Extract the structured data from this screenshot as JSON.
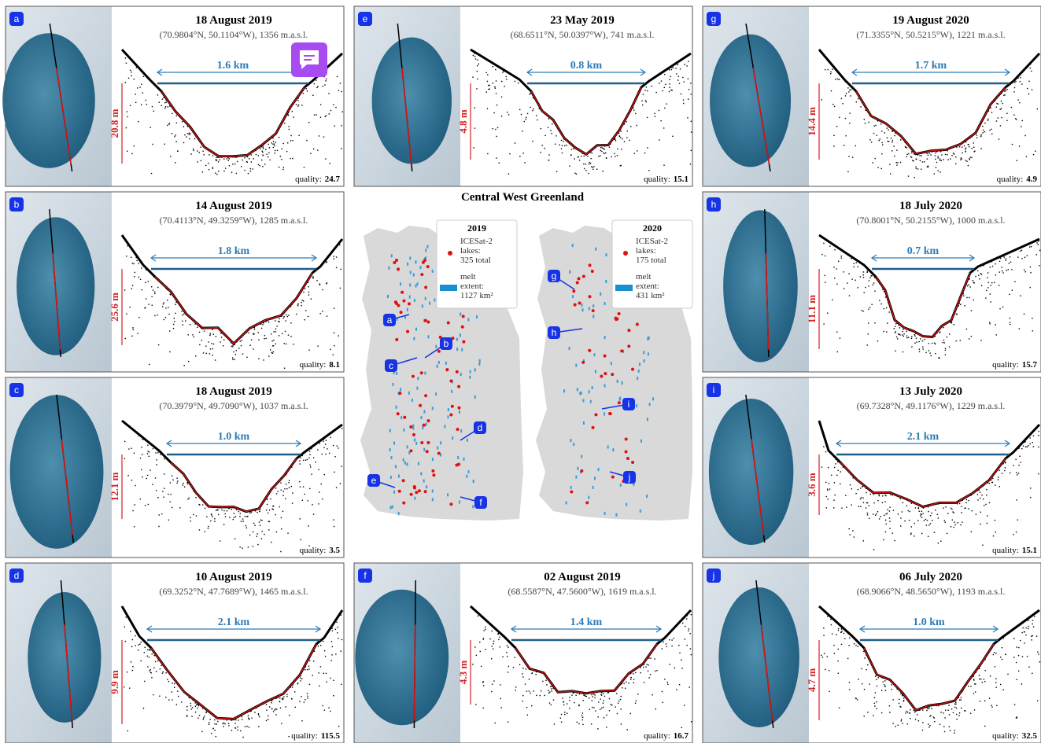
{
  "panels": [
    {
      "letter": "a",
      "date": "18 August 2019",
      "location": "(70.9804°N, 50.1104°W), 1356 m.a.s.l.",
      "width": "1.6 km",
      "depth": "20.8 m",
      "quality_label": "quality:",
      "quality": "24.7"
    },
    {
      "letter": "b",
      "date": "14 August 2019",
      "location": "(70.4113°N, 49.3259°W), 1285 m.a.s.l.",
      "width": "1.8 km",
      "depth": "25.6 m",
      "quality_label": "quality:",
      "quality": "8.1"
    },
    {
      "letter": "c",
      "date": "18 August 2019",
      "location": "(70.3979°N, 49.7090°W), 1037 m.a.s.l.",
      "width": "1.0 km",
      "depth": "12.1 m",
      "quality_label": "quality:",
      "quality": "3.5"
    },
    {
      "letter": "d",
      "date": "10 August 2019",
      "location": "(69.3252°N, 47.7689°W), 1465 m.a.s.l.",
      "width": "2.1 km",
      "depth": "9.9 m",
      "quality_label": "quality:",
      "quality": "115.5"
    },
    {
      "letter": "e",
      "date": "23 May 2019",
      "location": "(68.6511°N, 50.0397°W), 741 m.a.s.l.",
      "width": "0.8 km",
      "depth": "4.8 m",
      "quality_label": "quality:",
      "quality": "15.1"
    },
    {
      "letter": "f",
      "date": "02 August 2019",
      "location": "(68.5587°N, 47.5600°W), 1619 m.a.s.l.",
      "width": "1.4 km",
      "depth": "4.3 m",
      "quality_label": "quality:",
      "quality": "16.7"
    },
    {
      "letter": "g",
      "date": "19 August 2020",
      "location": "(71.3355°N, 50.5215°W), 1221 m.a.s.l.",
      "width": "1.7 km",
      "depth": "14.4 m",
      "quality_label": "quality:",
      "quality": "4.9"
    },
    {
      "letter": "h",
      "date": "18 July 2020",
      "location": "(70.8001°N, 50.2155°W), 1000 m.a.s.l.",
      "width": "0.7 km",
      "depth": "11.1 m",
      "quality_label": "quality:",
      "quality": "15.7"
    },
    {
      "letter": "i",
      "date": "13 July 2020",
      "location": "(69.7328°N, 49.1176°W), 1229 m.a.s.l.",
      "width": "2.1 km",
      "depth": "3.6 m",
      "quality_label": "quality:",
      "quality": "15.1"
    },
    {
      "letter": "j",
      "date": "06 July 2020",
      "location": "(68.9066°N, 48.5650°W), 1193 m.a.s.l.",
      "width": "1.0 km",
      "depth": "4.7 m",
      "quality_label": "quality:",
      "quality": "32.5"
    }
  ],
  "map": {
    "title": "Central West Greenland",
    "legends": [
      {
        "year": "2019",
        "lakes_text": [
          "ICESat-2",
          "lakes:",
          "325 total"
        ],
        "melt_text": [
          "melt",
          "extent:",
          "1127 km²"
        ]
      },
      {
        "year": "2020",
        "lakes_text": [
          "ICESat-2",
          "lakes:",
          "175 total"
        ],
        "melt_text": [
          "melt",
          "extent:",
          "431 km²"
        ]
      }
    ],
    "labels": [
      "a",
      "b",
      "c",
      "d",
      "e",
      "f",
      "g",
      "h",
      "i",
      "j"
    ]
  }
}
